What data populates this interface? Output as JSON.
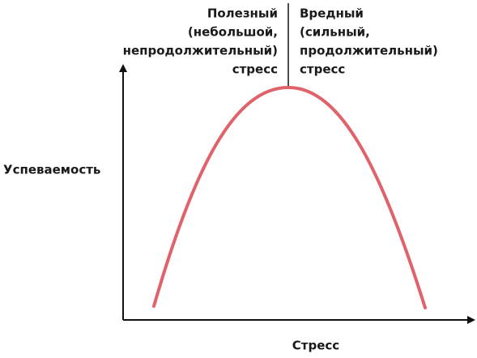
{
  "annotations": {
    "beneficial": [
      "Полезный",
      "(небольшой,",
      "непродолжительный)",
      "стресс"
    ],
    "harmful": [
      "Вредный",
      "(сильный,",
      "продолжительный)",
      "стресс"
    ]
  },
  "axes": {
    "y_label": "Успеваемость",
    "x_label": "Стресс"
  }
}
